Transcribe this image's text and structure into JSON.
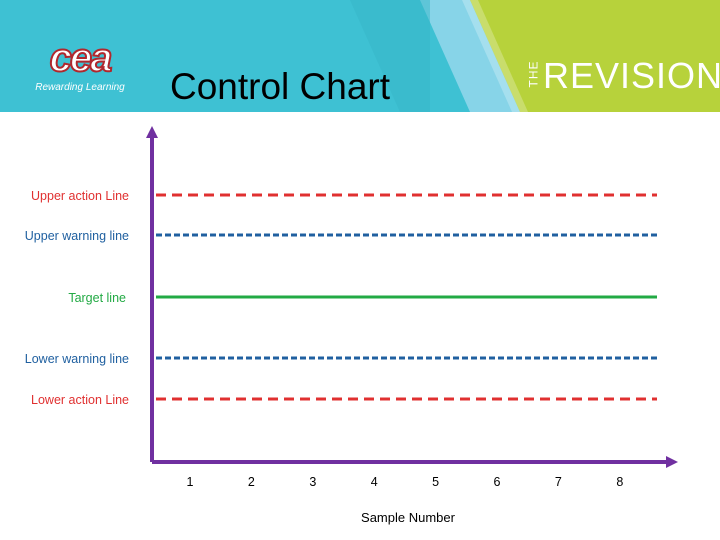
{
  "header": {
    "logo_text": "cea",
    "logo_sub": "Rewarding Learning",
    "brand_prefix": "THE",
    "brand_name": "REVISION",
    "colors": {
      "teal": "#3ec1d3",
      "lime": "#b7d23b",
      "light_blue": "#8fd6ea"
    }
  },
  "chart_data": {
    "type": "line",
    "title": "Control Chart",
    "xlabel": "Sample Number",
    "ylabel": "",
    "categories": [
      "1",
      "2",
      "3",
      "4",
      "5",
      "6",
      "7",
      "8"
    ],
    "series": [],
    "reference_lines": [
      {
        "label": "Upper action Line",
        "style": "dashed",
        "color": "#e03030",
        "level": 5
      },
      {
        "label": "Upper warning line",
        "style": "dashed",
        "color": "#2060a0",
        "level": 4
      },
      {
        "label": "Target line",
        "style": "solid",
        "color": "#22aa44",
        "level": 3
      },
      {
        "label": "Lower warning line",
        "style": "dashed",
        "color": "#2060a0",
        "level": 2
      },
      {
        "label": "Lower action Line",
        "style": "dashed",
        "color": "#e03030",
        "level": 1
      }
    ],
    "axis_color": "#7030a0"
  }
}
